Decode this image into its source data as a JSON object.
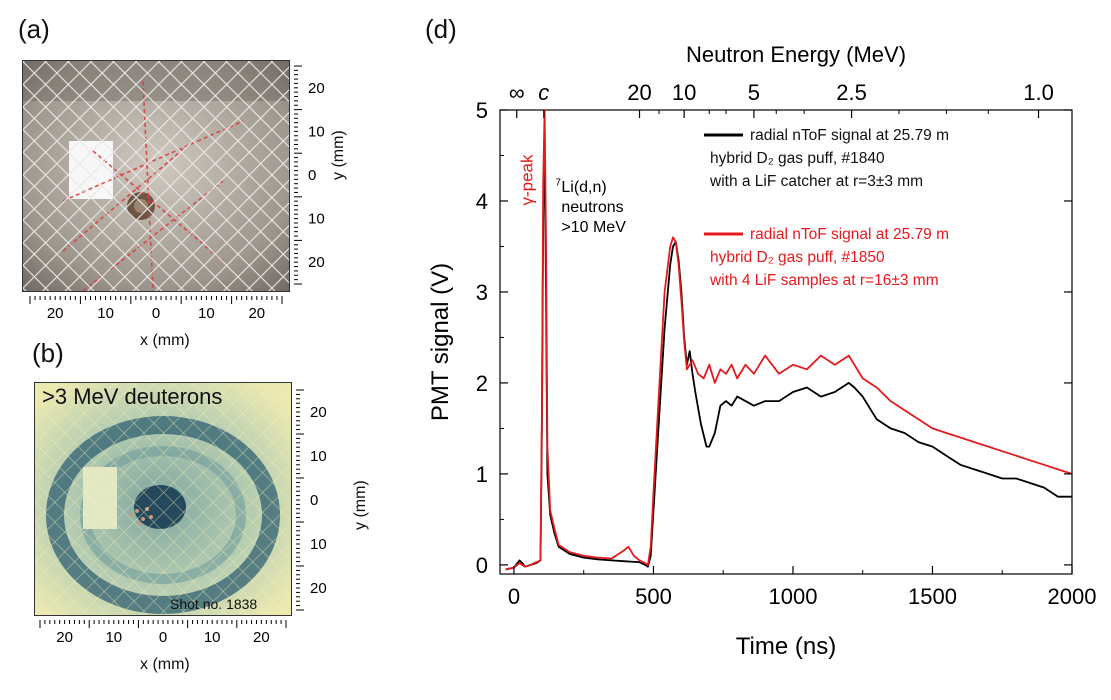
{
  "panels": {
    "a": {
      "label": "(a)",
      "x_axis_label": "x (mm)",
      "y_axis_label": "y (mm)",
      "x_ticks": [
        "20",
        "10",
        "0",
        "10",
        "20"
      ],
      "y_ticks": [
        "20",
        "10",
        "0",
        "10",
        "20"
      ]
    },
    "b": {
      "label": "(b)",
      "title": ">3 MeV deuterons",
      "shot_label": "Shot no. 1838",
      "x_axis_label": "x (mm)",
      "y_axis_label": "y (mm)",
      "x_ticks": [
        "20",
        "10",
        "0",
        "10",
        "20"
      ],
      "y_ticks": [
        "20",
        "10",
        "0",
        "10",
        "20"
      ]
    },
    "d": {
      "label": "(d)"
    }
  },
  "chart_data": {
    "type": "line",
    "xlabel": "Time (ns)",
    "ylabel": "PMT signal (V)",
    "top_axis_label": "Neutron Energy (MeV)",
    "xlim": [
      -50,
      2000
    ],
    "ylim": [
      -0.1,
      5
    ],
    "x_ticks": [
      0,
      500,
      1000,
      1500,
      2000
    ],
    "y_ticks": [
      0,
      1,
      2,
      3,
      4,
      5
    ],
    "top_ticks": [
      {
        "label": "∞",
        "time": 10
      },
      {
        "label": "c",
        "time": 107
      },
      {
        "label": "20",
        "time": 450
      },
      {
        "label": "10",
        "time": 610
      },
      {
        "label": "5",
        "time": 860
      },
      {
        "label": "2.5",
        "time": 1210
      },
      {
        "label": "1.0",
        "time": 1880
      }
    ],
    "annotations": {
      "gamma_peak": "γ-peak",
      "li_label_sup": "7",
      "li_label_main": "Li(d,n)",
      "li_label_line2": "neutrons",
      "li_label_line3": ">10 MeV"
    },
    "legend": [
      {
        "color": "#000000",
        "lines": [
          "radial nToF signal at 25.79 m",
          "hybrid D₂ gas puff, #1840",
          "with a LiF catcher at r=3±3  mm"
        ]
      },
      {
        "color": "#e41a1c",
        "lines": [
          "radial nToF signal at 25.79 m",
          "hybrid D₂ gas puff, #1850",
          "with 4 LiF samples at r=16±3 mm"
        ]
      }
    ],
    "series": [
      {
        "color": "#000000",
        "x": [
          -30,
          0,
          20,
          30,
          40,
          60,
          80,
          95,
          100,
          105,
          110,
          115,
          120,
          130,
          145,
          160,
          200,
          250,
          300,
          350,
          400,
          450,
          470,
          480,
          490,
          500,
          520,
          540,
          560,
          570,
          580,
          590,
          600,
          610,
          620,
          630,
          640,
          650,
          670,
          690,
          700,
          720,
          740,
          760,
          780,
          800,
          830,
          860,
          900,
          950,
          1000,
          1050,
          1100,
          1150,
          1200,
          1220,
          1250,
          1300,
          1350,
          1400,
          1450,
          1500,
          1550,
          1600,
          1650,
          1700,
          1750,
          1800,
          1850,
          1900,
          1950,
          2000
        ],
        "y": [
          -0.05,
          -0.03,
          0.05,
          0.02,
          -0.02,
          0.0,
          0.02,
          0.05,
          1.5,
          3.8,
          4.8,
          3.0,
          1.0,
          0.55,
          0.35,
          0.2,
          0.12,
          0.08,
          0.06,
          0.05,
          0.04,
          0.03,
          0.0,
          -0.02,
          0.1,
          0.6,
          1.6,
          2.6,
          3.3,
          3.5,
          3.55,
          3.35,
          3.0,
          2.5,
          2.2,
          2.35,
          2.1,
          1.9,
          1.55,
          1.3,
          1.3,
          1.45,
          1.75,
          1.8,
          1.75,
          1.85,
          1.8,
          1.75,
          1.8,
          1.8,
          1.9,
          1.95,
          1.85,
          1.9,
          2.0,
          1.95,
          1.85,
          1.6,
          1.5,
          1.45,
          1.35,
          1.3,
          1.2,
          1.1,
          1.05,
          1.0,
          0.95,
          0.95,
          0.9,
          0.85,
          0.75,
          0.75
        ]
      },
      {
        "color": "#e41a1c",
        "x": [
          -30,
          0,
          20,
          40,
          60,
          80,
          95,
          100,
          105,
          110,
          115,
          120,
          130,
          145,
          160,
          200,
          250,
          300,
          350,
          390,
          410,
          430,
          450,
          470,
          480,
          490,
          500,
          520,
          540,
          560,
          570,
          580,
          590,
          600,
          610,
          620,
          640,
          660,
          680,
          700,
          720,
          740,
          760,
          780,
          800,
          830,
          860,
          900,
          950,
          1000,
          1050,
          1100,
          1150,
          1200,
          1250,
          1300,
          1350,
          1400,
          1450,
          1500,
          1550,
          1600,
          1650,
          1700,
          1750,
          1800,
          1850,
          1900,
          1950,
          2000
        ],
        "y": [
          -0.05,
          -0.03,
          0.02,
          -0.02,
          0.0,
          0.03,
          0.05,
          1.7,
          4.2,
          5.0,
          3.6,
          1.3,
          0.6,
          0.4,
          0.22,
          0.14,
          0.1,
          0.08,
          0.07,
          0.15,
          0.2,
          0.1,
          0.05,
          0.02,
          0.0,
          0.2,
          0.8,
          1.9,
          3.0,
          3.5,
          3.6,
          3.55,
          3.3,
          2.9,
          2.45,
          2.15,
          2.25,
          2.1,
          2.05,
          2.2,
          2.0,
          2.15,
          2.1,
          2.2,
          2.05,
          2.2,
          2.1,
          2.3,
          2.1,
          2.2,
          2.15,
          2.3,
          2.2,
          2.3,
          2.05,
          1.95,
          1.8,
          1.7,
          1.6,
          1.5,
          1.45,
          1.4,
          1.35,
          1.3,
          1.25,
          1.2,
          1.15,
          1.1,
          1.05,
          1.0
        ]
      }
    ]
  }
}
